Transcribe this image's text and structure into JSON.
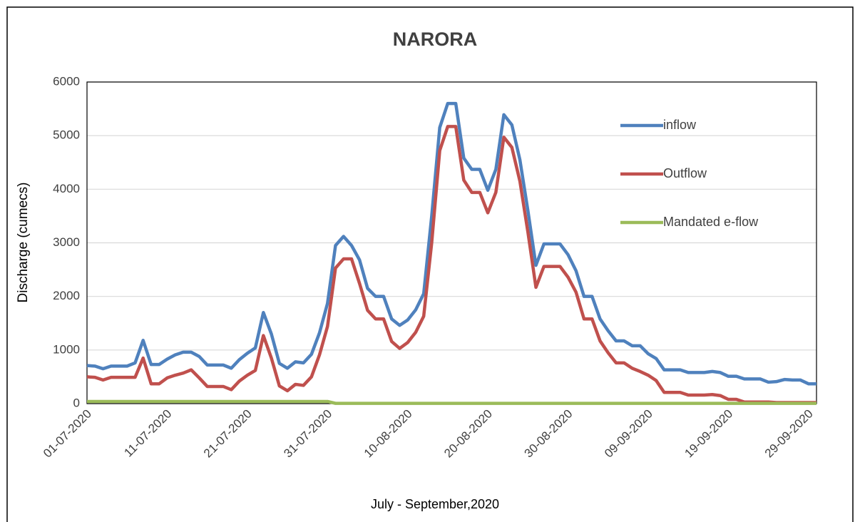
{
  "chart_data": {
    "type": "line",
    "title": "NARORA",
    "xlabel": "July - September,2020",
    "ylabel": "Discharge (cumecs)",
    "categories": [
      "01-07-2020",
      null,
      null,
      null,
      null,
      null,
      null,
      null,
      null,
      null,
      "11-07-2020",
      null,
      null,
      null,
      null,
      null,
      null,
      null,
      null,
      null,
      "21-07-2020",
      null,
      null,
      null,
      null,
      null,
      null,
      null,
      null,
      null,
      "31-07-2020",
      null,
      null,
      null,
      null,
      null,
      null,
      null,
      null,
      null,
      "10-08-2020",
      null,
      null,
      null,
      null,
      null,
      null,
      null,
      null,
      null,
      "20-08-2020",
      null,
      null,
      null,
      null,
      null,
      null,
      null,
      null,
      null,
      "30-08-2020",
      null,
      null,
      null,
      null,
      null,
      null,
      null,
      null,
      null,
      "09-09-2020",
      null,
      null,
      null,
      null,
      null,
      null,
      null,
      null,
      null,
      "19-09-2020",
      null,
      null,
      null,
      null,
      null,
      null,
      null,
      null,
      null,
      "29-09-2020",
      null
    ],
    "series": [
      {
        "name": "inflow",
        "color": "#4f81bd",
        "values": [
          710,
          700,
          650,
          700,
          700,
          700,
          760,
          1180,
          730,
          730,
          830,
          910,
          960,
          960,
          880,
          720,
          720,
          720,
          660,
          820,
          940,
          1040,
          1700,
          1300,
          750,
          660,
          780,
          760,
          920,
          1320,
          1870,
          2950,
          3120,
          2950,
          2680,
          2150,
          2000,
          2000,
          1580,
          1460,
          1560,
          1750,
          2050,
          3500,
          5150,
          5600,
          5600,
          4580,
          4370,
          4370,
          3980,
          4370,
          5390,
          5200,
          4550,
          3600,
          2580,
          2980,
          2980,
          2980,
          2780,
          2480,
          2000,
          2000,
          1580,
          1360,
          1170,
          1170,
          1080,
          1080,
          930,
          840,
          630,
          630,
          630,
          580,
          580,
          580,
          600,
          580,
          510,
          510,
          460,
          460,
          460,
          400,
          410,
          450,
          440,
          440,
          370,
          370
        ]
      },
      {
        "name": "Outflow",
        "color": "#c0504d",
        "values": [
          500,
          490,
          440,
          490,
          490,
          490,
          490,
          850,
          370,
          370,
          480,
          530,
          570,
          630,
          480,
          320,
          320,
          320,
          260,
          420,
          530,
          620,
          1270,
          850,
          330,
          240,
          360,
          340,
          500,
          910,
          1440,
          2530,
          2700,
          2700,
          2240,
          1740,
          1580,
          1580,
          1160,
          1030,
          1140,
          1330,
          1630,
          3000,
          4720,
          5170,
          5170,
          4170,
          3940,
          3940,
          3560,
          3940,
          4970,
          4780,
          4150,
          3200,
          2170,
          2560,
          2560,
          2560,
          2360,
          2080,
          1580,
          1580,
          1170,
          950,
          760,
          760,
          660,
          600,
          530,
          430,
          210,
          210,
          210,
          160,
          160,
          160,
          170,
          150,
          80,
          80,
          30,
          30,
          30,
          30,
          20,
          20,
          20,
          20,
          20,
          20
        ]
      },
      {
        "name": "Mandated e-flow",
        "color": "#9bbb59",
        "values": [
          40,
          40,
          40,
          40,
          40,
          40,
          40,
          40,
          40,
          40,
          40,
          40,
          40,
          40,
          40,
          40,
          40,
          40,
          40,
          40,
          40,
          40,
          40,
          40,
          40,
          40,
          40,
          40,
          40,
          40,
          40,
          5,
          5,
          5,
          5,
          5,
          5,
          5,
          5,
          5,
          5,
          5,
          5,
          5,
          5,
          5,
          5,
          5,
          5,
          5,
          5,
          5,
          5,
          5,
          5,
          5,
          5,
          5,
          5,
          5,
          5,
          5,
          5,
          5,
          5,
          5,
          5,
          5,
          5,
          5,
          5,
          5,
          5,
          5,
          5,
          5,
          5,
          5,
          5,
          5,
          5,
          5,
          5,
          5,
          5,
          5,
          5,
          5,
          5,
          5,
          5,
          5
        ]
      }
    ],
    "ylim": [
      0,
      6000
    ],
    "yticks": [
      0,
      1000,
      2000,
      3000,
      4000,
      5000,
      6000
    ],
    "grid": true,
    "legend": "upper right"
  }
}
